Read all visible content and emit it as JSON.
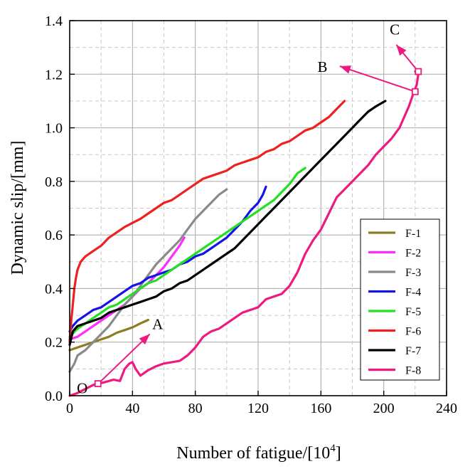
{
  "chart_data": {
    "type": "line",
    "xlabel": "Number of fatigue/[10",
    "xlabel_sup": "4",
    "xlabel_end": "]",
    "ylabel": "Dynamic slip/[mm]",
    "xlim": [
      0,
      240
    ],
    "ylim": [
      0,
      1.4
    ],
    "xticks": [
      0,
      40,
      80,
      120,
      160,
      200,
      240
    ],
    "yticks": [
      "0.0",
      "0.2",
      "0.4",
      "0.6",
      "0.8",
      "1.0",
      "1.2",
      "1.4"
    ],
    "grid": true,
    "legend_position": "bottom-right",
    "series": [
      {
        "name": "F-1",
        "color": "#8b7d22",
        "points": [
          [
            0,
            0.17
          ],
          [
            5,
            0.18
          ],
          [
            10,
            0.19
          ],
          [
            15,
            0.2
          ],
          [
            20,
            0.21
          ],
          [
            25,
            0.22
          ],
          [
            30,
            0.235
          ],
          [
            35,
            0.245
          ],
          [
            40,
            0.255
          ],
          [
            45,
            0.27
          ],
          [
            50,
            0.283
          ]
        ]
      },
      {
        "name": "F-2",
        "color": "#ff2bff",
        "points": [
          [
            0,
            0.21
          ],
          [
            5,
            0.22
          ],
          [
            10,
            0.24
          ],
          [
            15,
            0.26
          ],
          [
            20,
            0.28
          ],
          [
            25,
            0.3
          ],
          [
            30,
            0.32
          ],
          [
            35,
            0.34
          ],
          [
            40,
            0.37
          ],
          [
            45,
            0.4
          ],
          [
            50,
            0.42
          ],
          [
            55,
            0.45
          ],
          [
            60,
            0.48
          ],
          [
            65,
            0.52
          ],
          [
            70,
            0.56
          ],
          [
            73,
            0.59
          ]
        ]
      },
      {
        "name": "F-3",
        "color": "#8a8a8a",
        "points": [
          [
            0,
            0.09
          ],
          [
            3,
            0.12
          ],
          [
            5,
            0.15
          ],
          [
            10,
            0.17
          ],
          [
            15,
            0.2
          ],
          [
            20,
            0.23
          ],
          [
            25,
            0.26
          ],
          [
            30,
            0.3
          ],
          [
            35,
            0.34
          ],
          [
            40,
            0.37
          ],
          [
            45,
            0.41
          ],
          [
            50,
            0.45
          ],
          [
            55,
            0.49
          ],
          [
            60,
            0.52
          ],
          [
            65,
            0.55
          ],
          [
            70,
            0.58
          ],
          [
            75,
            0.62
          ],
          [
            80,
            0.66
          ],
          [
            85,
            0.69
          ],
          [
            90,
            0.72
          ],
          [
            95,
            0.75
          ],
          [
            100,
            0.77
          ]
        ]
      },
      {
        "name": "F-4",
        "color": "#1414e6",
        "points": [
          [
            0,
            0.24
          ],
          [
            2,
            0.26
          ],
          [
            5,
            0.28
          ],
          [
            10,
            0.3
          ],
          [
            15,
            0.32
          ],
          [
            20,
            0.33
          ],
          [
            25,
            0.35
          ],
          [
            30,
            0.37
          ],
          [
            35,
            0.39
          ],
          [
            40,
            0.41
          ],
          [
            45,
            0.42
          ],
          [
            50,
            0.44
          ],
          [
            55,
            0.45
          ],
          [
            60,
            0.46
          ],
          [
            65,
            0.47
          ],
          [
            70,
            0.49
          ],
          [
            75,
            0.5
          ],
          [
            80,
            0.52
          ],
          [
            85,
            0.53
          ],
          [
            90,
            0.55
          ],
          [
            95,
            0.57
          ],
          [
            100,
            0.59
          ],
          [
            105,
            0.62
          ],
          [
            110,
            0.65
          ],
          [
            115,
            0.69
          ],
          [
            120,
            0.72
          ],
          [
            123,
            0.75
          ],
          [
            125,
            0.78
          ]
        ]
      },
      {
        "name": "F-5",
        "color": "#22e022",
        "points": [
          [
            0,
            0.22
          ],
          [
            5,
            0.25
          ],
          [
            10,
            0.27
          ],
          [
            15,
            0.29
          ],
          [
            20,
            0.31
          ],
          [
            25,
            0.33
          ],
          [
            30,
            0.34
          ],
          [
            35,
            0.36
          ],
          [
            40,
            0.38
          ],
          [
            45,
            0.4
          ],
          [
            50,
            0.42
          ],
          [
            55,
            0.43
          ],
          [
            60,
            0.45
          ],
          [
            65,
            0.47
          ],
          [
            70,
            0.49
          ],
          [
            75,
            0.51
          ],
          [
            80,
            0.53
          ],
          [
            85,
            0.55
          ],
          [
            90,
            0.57
          ],
          [
            95,
            0.59
          ],
          [
            100,
            0.61
          ],
          [
            105,
            0.63
          ],
          [
            110,
            0.65
          ],
          [
            115,
            0.67
          ],
          [
            120,
            0.69
          ],
          [
            125,
            0.71
          ],
          [
            130,
            0.73
          ],
          [
            135,
            0.76
          ],
          [
            140,
            0.79
          ],
          [
            145,
            0.83
          ],
          [
            150,
            0.85
          ]
        ]
      },
      {
        "name": "F-6",
        "color": "#ee2020",
        "points": [
          [
            0,
            0.2
          ],
          [
            1,
            0.28
          ],
          [
            2,
            0.34
          ],
          [
            3,
            0.4
          ],
          [
            4,
            0.44
          ],
          [
            5,
            0.47
          ],
          [
            7,
            0.5
          ],
          [
            10,
            0.52
          ],
          [
            15,
            0.54
          ],
          [
            20,
            0.56
          ],
          [
            25,
            0.59
          ],
          [
            30,
            0.61
          ],
          [
            35,
            0.63
          ],
          [
            40,
            0.645
          ],
          [
            45,
            0.66
          ],
          [
            50,
            0.68
          ],
          [
            55,
            0.7
          ],
          [
            60,
            0.72
          ],
          [
            65,
            0.73
          ],
          [
            70,
            0.75
          ],
          [
            75,
            0.77
          ],
          [
            80,
            0.79
          ],
          [
            85,
            0.81
          ],
          [
            90,
            0.82
          ],
          [
            95,
            0.83
          ],
          [
            100,
            0.84
          ],
          [
            105,
            0.86
          ],
          [
            110,
            0.87
          ],
          [
            115,
            0.88
          ],
          [
            120,
            0.89
          ],
          [
            125,
            0.91
          ],
          [
            130,
            0.92
          ],
          [
            135,
            0.94
          ],
          [
            140,
            0.95
          ],
          [
            145,
            0.97
          ],
          [
            150,
            0.99
          ],
          [
            155,
            1.0
          ],
          [
            160,
            1.02
          ],
          [
            165,
            1.04
          ],
          [
            170,
            1.07
          ],
          [
            175,
            1.1
          ]
        ]
      },
      {
        "name": "F-7",
        "color": "#000000",
        "points": [
          [
            0,
            0.19
          ],
          [
            2,
            0.24
          ],
          [
            5,
            0.26
          ],
          [
            10,
            0.27
          ],
          [
            15,
            0.28
          ],
          [
            20,
            0.29
          ],
          [
            25,
            0.31
          ],
          [
            30,
            0.32
          ],
          [
            35,
            0.33
          ],
          [
            40,
            0.34
          ],
          [
            45,
            0.35
          ],
          [
            50,
            0.36
          ],
          [
            55,
            0.37
          ],
          [
            60,
            0.39
          ],
          [
            65,
            0.4
          ],
          [
            70,
            0.42
          ],
          [
            75,
            0.43
          ],
          [
            80,
            0.45
          ],
          [
            85,
            0.47
          ],
          [
            90,
            0.49
          ],
          [
            95,
            0.51
          ],
          [
            100,
            0.53
          ],
          [
            105,
            0.55
          ],
          [
            110,
            0.58
          ],
          [
            115,
            0.61
          ],
          [
            120,
            0.64
          ],
          [
            125,
            0.67
          ],
          [
            130,
            0.7
          ],
          [
            135,
            0.73
          ],
          [
            140,
            0.76
          ],
          [
            145,
            0.79
          ],
          [
            150,
            0.82
          ],
          [
            155,
            0.85
          ],
          [
            160,
            0.88
          ],
          [
            165,
            0.91
          ],
          [
            170,
            0.94
          ],
          [
            175,
            0.97
          ],
          [
            180,
            1.0
          ],
          [
            185,
            1.03
          ],
          [
            190,
            1.06
          ],
          [
            195,
            1.08
          ],
          [
            201,
            1.1
          ]
        ]
      },
      {
        "name": "F-8",
        "color": "#ee1a80",
        "points": [
          [
            0,
            0.0
          ],
          [
            5,
            0.01
          ],
          [
            10,
            0.025
          ],
          [
            15,
            0.04
          ],
          [
            18,
            0.045
          ],
          [
            22,
            0.05
          ],
          [
            25,
            0.055
          ],
          [
            28,
            0.06
          ],
          [
            32,
            0.055
          ],
          [
            35,
            0.1
          ],
          [
            38,
            0.12
          ],
          [
            40,
            0.125
          ],
          [
            42,
            0.1
          ],
          [
            45,
            0.075
          ],
          [
            50,
            0.095
          ],
          [
            55,
            0.11
          ],
          [
            60,
            0.12
          ],
          [
            65,
            0.125
          ],
          [
            70,
            0.13
          ],
          [
            75,
            0.15
          ],
          [
            80,
            0.18
          ],
          [
            85,
            0.22
          ],
          [
            90,
            0.24
          ],
          [
            95,
            0.25
          ],
          [
            100,
            0.27
          ],
          [
            105,
            0.29
          ],
          [
            110,
            0.31
          ],
          [
            115,
            0.32
          ],
          [
            120,
            0.33
          ],
          [
            125,
            0.36
          ],
          [
            130,
            0.37
          ],
          [
            135,
            0.38
          ],
          [
            140,
            0.41
          ],
          [
            145,
            0.46
          ],
          [
            150,
            0.53
          ],
          [
            155,
            0.58
          ],
          [
            160,
            0.62
          ],
          [
            165,
            0.68
          ],
          [
            170,
            0.74
          ],
          [
            175,
            0.77
          ],
          [
            180,
            0.8
          ],
          [
            185,
            0.83
          ],
          [
            190,
            0.86
          ],
          [
            195,
            0.9
          ],
          [
            200,
            0.93
          ],
          [
            205,
            0.96
          ],
          [
            210,
            1.0
          ],
          [
            213,
            1.04
          ],
          [
            216,
            1.08
          ],
          [
            219,
            1.13
          ],
          [
            221,
            1.16
          ],
          [
            222,
            1.2
          ],
          [
            220,
            1.21
          ]
        ]
      }
    ],
    "annotations": [
      {
        "label": "O",
        "marker": [
          18,
          0.045
        ],
        "text_at": [
          8,
          0.03
        ]
      },
      {
        "label": "A",
        "arrow_from": [
          20,
          0.055
        ],
        "arrow_to": [
          51,
          0.23
        ],
        "text_at": [
          56,
          0.27
        ]
      },
      {
        "label": "B",
        "marker": [
          220,
          1.135
        ],
        "arrow_to": [
          172,
          1.23
        ],
        "text_at": [
          161,
          1.23
        ]
      },
      {
        "label": "C",
        "marker": [
          222,
          1.21
        ],
        "arrow_to": [
          208,
          1.31
        ],
        "text_at": [
          207,
          1.37
        ]
      }
    ]
  }
}
